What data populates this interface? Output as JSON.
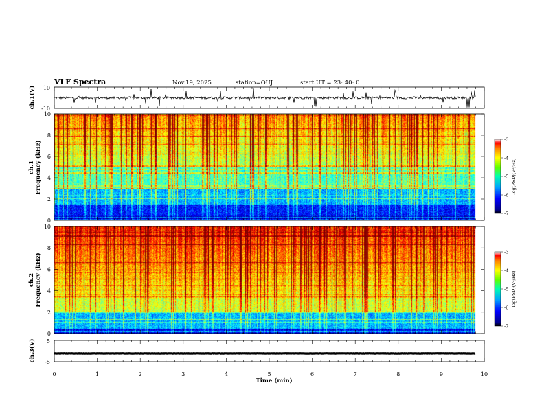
{
  "header": {
    "title": "VLF Spectra",
    "date": "Nov.19, 2025",
    "station": "station=OUJ",
    "start": "start  UT  =   23: 40: 0"
  },
  "chart_data": [
    {
      "type": "line",
      "panel": "ch1-waveform",
      "ylabel": "ch.1(V)",
      "ylim": [
        -10,
        10
      ],
      "yticks": [
        "10",
        "-10"
      ],
      "xlim": [
        0,
        10
      ],
      "baseline": 0,
      "color": "#000000"
    },
    {
      "type": "heatmap",
      "panel": "ch1-spectrogram",
      "ylabel": [
        "ch.1",
        "Frequency  (kHz)"
      ],
      "ylim": [
        0,
        10
      ],
      "yticks": [
        "0",
        "2",
        "4",
        "6",
        "8",
        "10"
      ],
      "xlim": [
        0,
        10
      ],
      "data_end_min": 9.8
    },
    {
      "type": "heatmap",
      "panel": "ch2-spectrogram",
      "ylabel": [
        "ch.2",
        "Frequency  (kHz)"
      ],
      "ylim": [
        0,
        10
      ],
      "yticks": [
        "0",
        "2",
        "4",
        "6",
        "8",
        "10"
      ],
      "xlim": [
        0,
        10
      ],
      "data_end_min": 9.8
    },
    {
      "type": "line",
      "panel": "ch3-waveform",
      "ylabel": "ch.3(V)",
      "ylim": [
        -5,
        5
      ],
      "yticks": [
        "5",
        "-5"
      ],
      "xlim": [
        0,
        10
      ],
      "baseline": -1.1,
      "xlabel": "Time  (min)",
      "xticks": [
        "0",
        "1",
        "2",
        "3",
        "4",
        "5",
        "6",
        "7",
        "8",
        "9",
        "10"
      ],
      "color": "#000000"
    }
  ],
  "colorbars": [
    {
      "name": "ch1",
      "ticks": [
        "-3",
        "-4",
        "-5",
        "-6",
        "-7"
      ],
      "label": "log(PSD)(V²/Hz)",
      "range": [
        -7,
        -3
      ]
    },
    {
      "name": "ch2",
      "ticks": [
        "-3",
        "-4",
        "-5",
        "-6",
        "-7"
      ],
      "label": "log(PSD)(V²/Hz)",
      "range": [
        -7,
        -3
      ]
    }
  ]
}
